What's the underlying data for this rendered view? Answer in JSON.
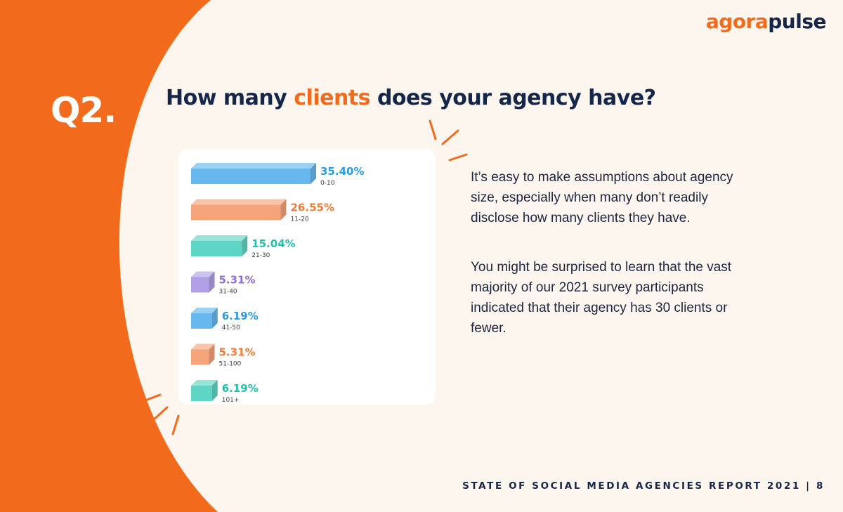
{
  "brand": {
    "logo_part1": "agora",
    "logo_part2": "pulse",
    "accent_color": "#f26b1d",
    "navy_color": "#14264a"
  },
  "question": {
    "number": "Q2.",
    "title_before": "How many ",
    "title_highlight": "clients",
    "title_after": " does your agency have?"
  },
  "chart_data": {
    "type": "bar",
    "orientation": "horizontal",
    "categories": [
      "0-10",
      "11-20",
      "21-30",
      "31-40",
      "41-50",
      "51-100",
      "101+"
    ],
    "values": [
      35.4,
      26.55,
      15.04,
      5.31,
      6.19,
      5.31,
      6.19
    ],
    "value_labels": [
      "35.40%",
      "26.55%",
      "15.04%",
      "5.31%",
      "6.19%",
      "5.31%",
      "6.19%"
    ],
    "unit": "%",
    "colors": [
      "#66b8ee",
      "#f6a47a",
      "#5fd5c5",
      "#b0a0e6",
      "#66b8ee",
      "#f6a47a",
      "#5fd5c5"
    ],
    "label_colors": [
      "#2a9ae4",
      "#f07a36",
      "#1fc0ad",
      "#8c6fdc",
      "#2a9ae4",
      "#f07a36",
      "#1fc0ad"
    ],
    "legend": false,
    "grid": false
  },
  "body": {
    "paragraph1": "It’s easy to make assumptions about agency size, especially when many don’t readily disclose how many clients they have.",
    "paragraph2": "You might be surprised to learn that the vast majority of our 2021 survey participants indicated that their agency has 30 clients or fewer."
  },
  "footer": {
    "report": "STATE OF SOCIAL MEDIA AGENCIES REPORT 2021 | 8"
  }
}
